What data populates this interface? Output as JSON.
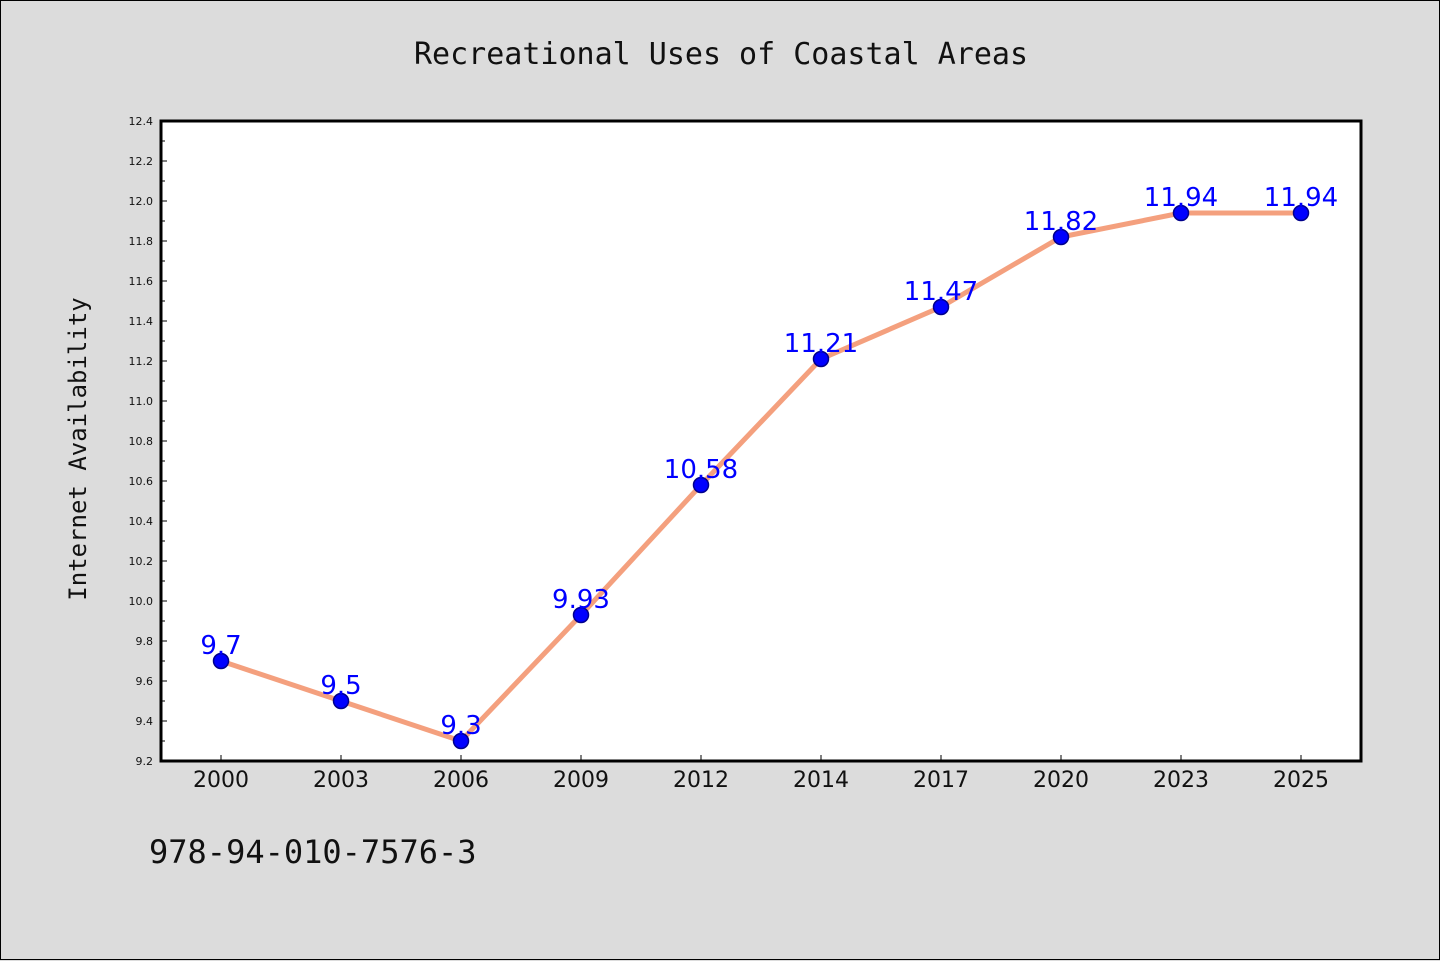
{
  "chart_data": {
    "type": "line",
    "title": "Recreational Uses of Coastal Areas",
    "ylabel": "Internet Availability",
    "xlabel": "",
    "categories": [
      "2000",
      "2003",
      "2006",
      "2009",
      "2012",
      "2014",
      "2017",
      "2020",
      "2023",
      "2025"
    ],
    "series": [
      {
        "values": [
          9.7,
          9.5,
          9.3,
          9.93,
          10.58,
          11.21,
          11.47,
          11.82,
          11.94,
          11.94
        ],
        "labels": [
          "9.7",
          "9.5",
          "9.3",
          "9.93",
          "10.58",
          "11.21",
          "11.47",
          "11.82",
          "11.94",
          "11.94"
        ]
      }
    ],
    "ylim": [
      9.2,
      12.4
    ],
    "yticks": [
      "9.2",
      "9.4",
      "9.6",
      "9.8",
      "10.0",
      "10.2",
      "10.4",
      "10.6",
      "10.8",
      "11.0",
      "11.2",
      "11.4",
      "11.6",
      "11.8",
      "12.0",
      "12.2",
      "12.4"
    ],
    "grid": false,
    "legend": "none",
    "colors": {
      "line": "#f4a07e",
      "marker": "#0000ff",
      "marker_edge": "#00008b",
      "data_label": "#0000ff",
      "background": "#dcdcdc",
      "plot_background": "#ffffff"
    }
  },
  "footer": {
    "code": "978-94-010-7576-3"
  }
}
